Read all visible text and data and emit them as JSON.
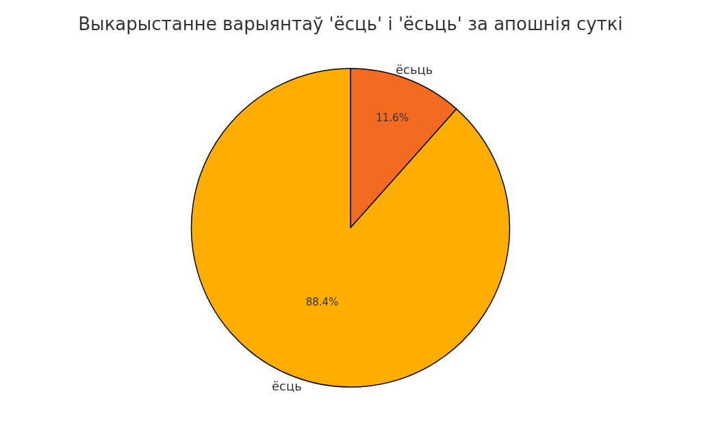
{
  "chart_data": {
    "type": "pie",
    "title": "Выкарыстанне варыянтаў 'ёсць' і 'ёсьць' за апошнія суткі",
    "categories": [
      "ёсьць",
      "ёсць"
    ],
    "values": [
      11.6,
      88.4
    ],
    "colors": [
      "#f26b21",
      "#ffae00"
    ],
    "value_labels": [
      "11.6%",
      "88.4%"
    ],
    "legend": false
  }
}
